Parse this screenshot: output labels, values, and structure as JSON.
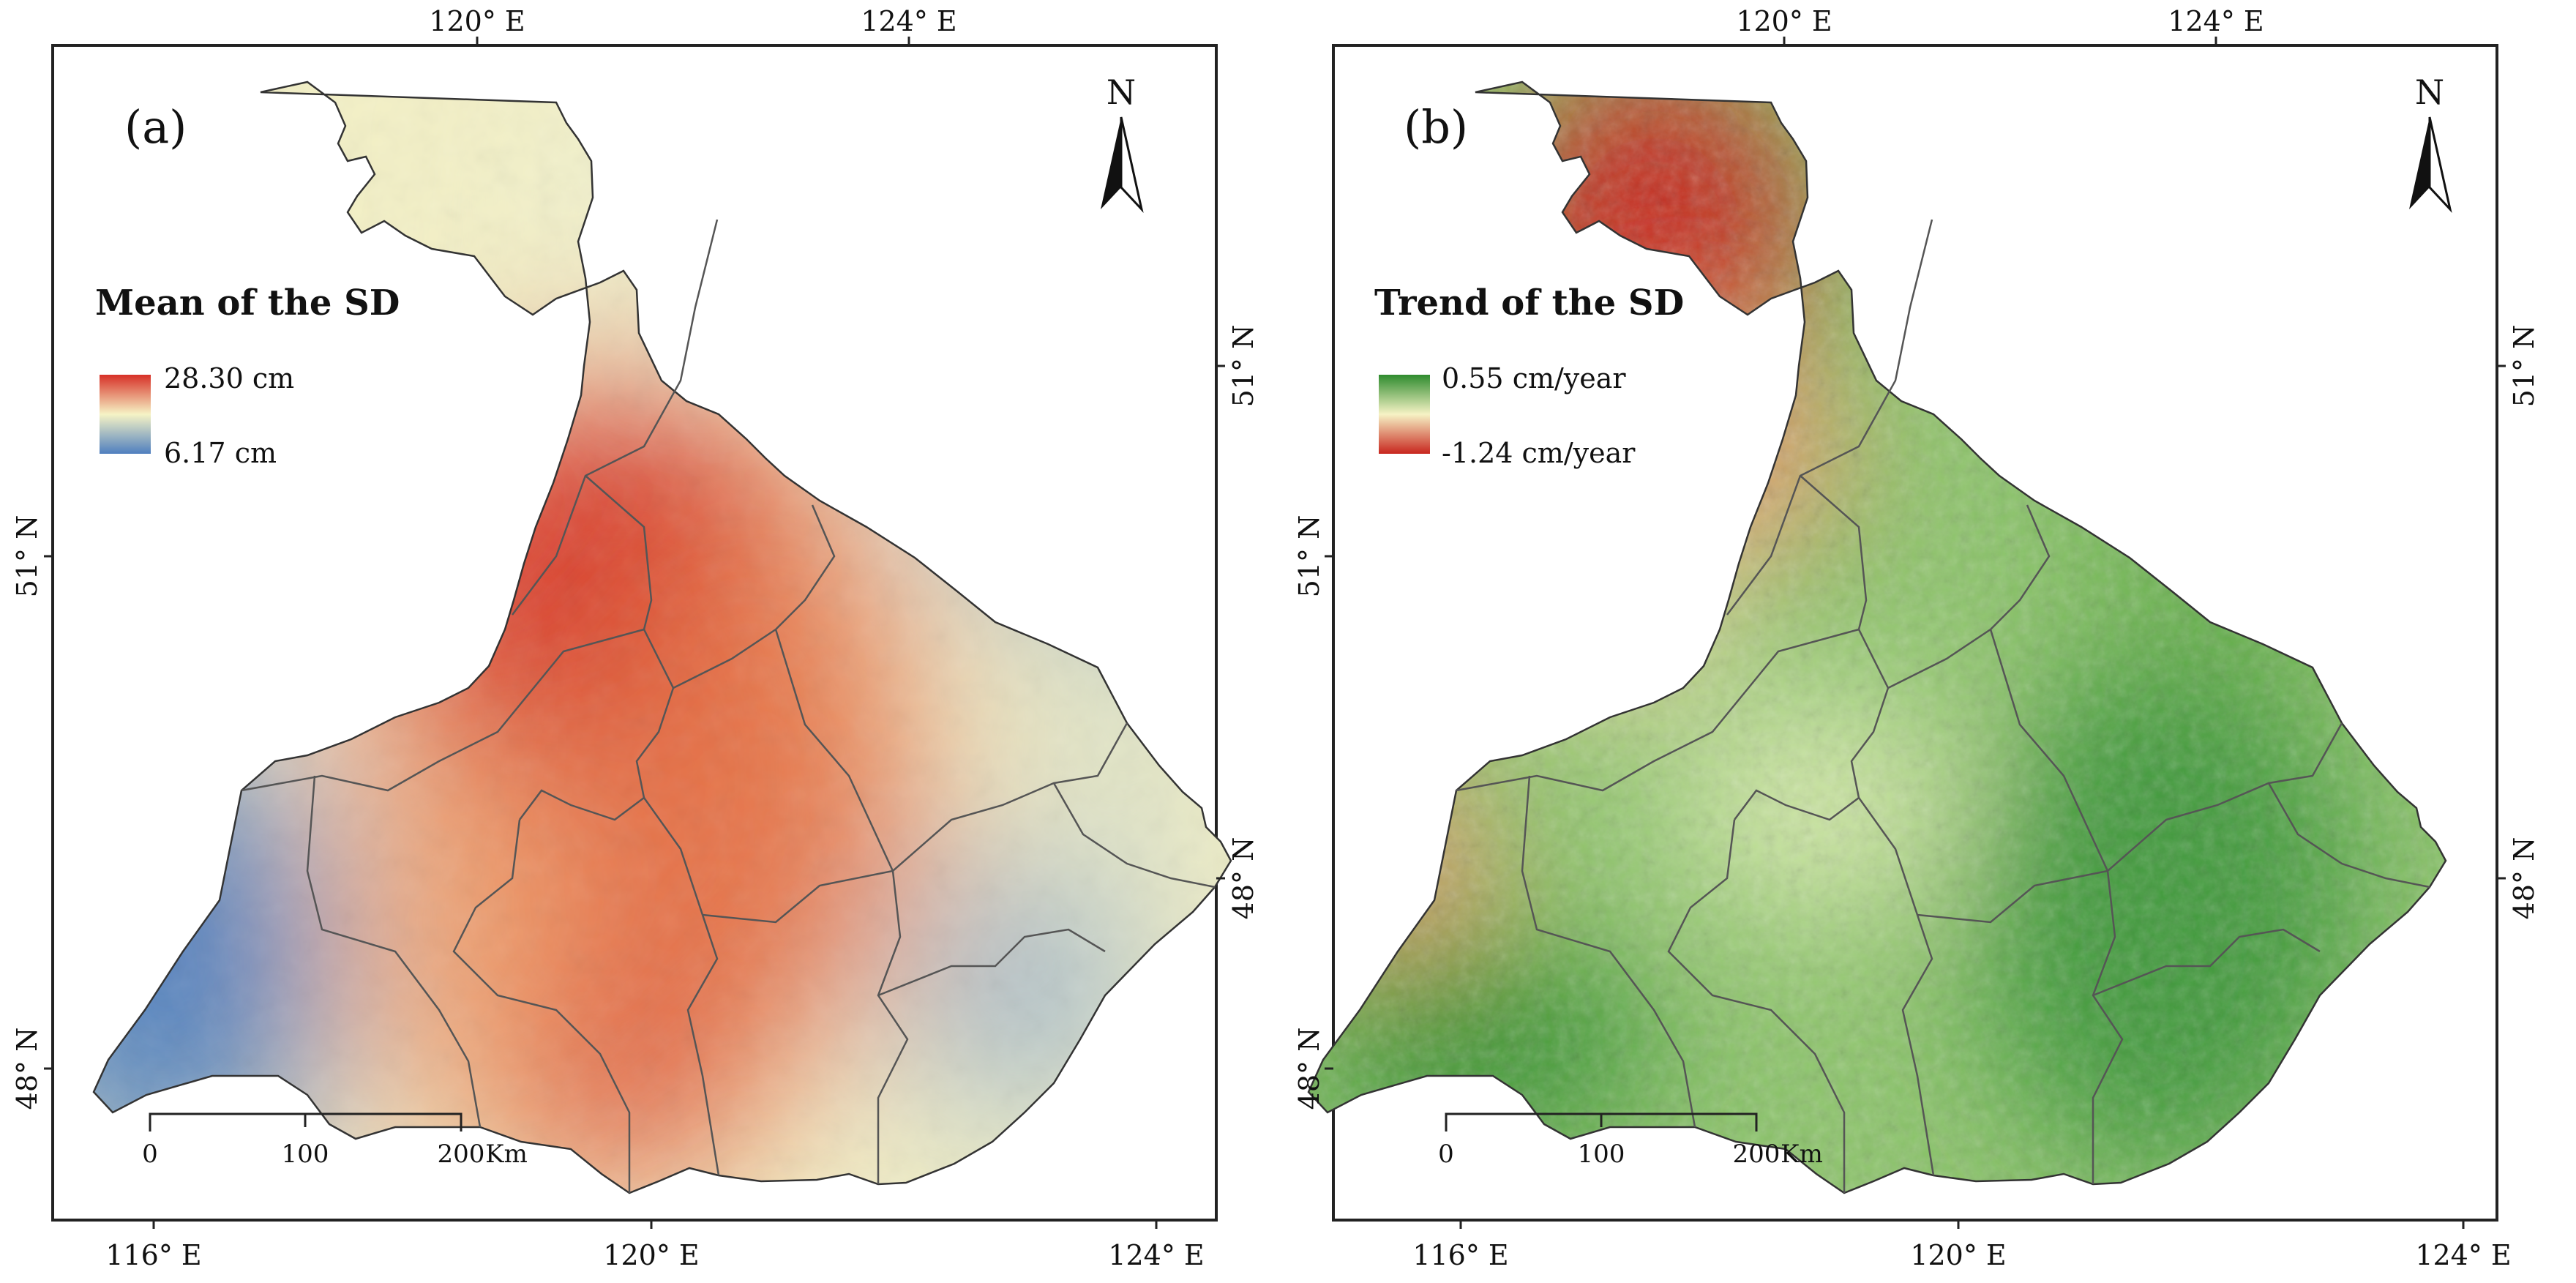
{
  "panels": [
    {
      "id": "a",
      "label": "(a)",
      "legend": {
        "title": "Mean of the SD",
        "max_label": "28.30 cm",
        "min_label": "6.17 cm",
        "colors": {
          "high": "#d73027",
          "mid": "#f6f3c5",
          "low": "#4f7fbf"
        }
      },
      "north_letter": "N",
      "scale_bar": {
        "ticks": [
          "0",
          "100",
          "200"
        ],
        "unit": "Km"
      },
      "top_ticks": [
        "120° E",
        "124° E"
      ],
      "bottom_ticks": [
        "116° E",
        "120° E",
        "124° E"
      ],
      "left_ticks": [
        "51° N",
        "48° N"
      ],
      "right_ticks": [
        "51° N",
        "48° N"
      ]
    },
    {
      "id": "b",
      "label": "(b)",
      "legend": {
        "title": "Trend of the SD",
        "max_label": "0.55 cm/year",
        "min_label": "-1.24 cm/year",
        "colors": {
          "high": "#2e8b2e",
          "mid": "#f6f3c5",
          "low": "#c8261e"
        }
      },
      "north_letter": "N",
      "scale_bar": {
        "ticks": [
          "0",
          "100",
          "200"
        ],
        "unit": "Km"
      },
      "top_ticks": [
        "120° E",
        "124° E"
      ],
      "bottom_ticks": [
        "116° E",
        "120° E",
        "124° E"
      ],
      "left_ticks": [
        "51° N",
        "48° N"
      ],
      "right_ticks": [
        "51° N",
        "48° N"
      ]
    }
  ]
}
